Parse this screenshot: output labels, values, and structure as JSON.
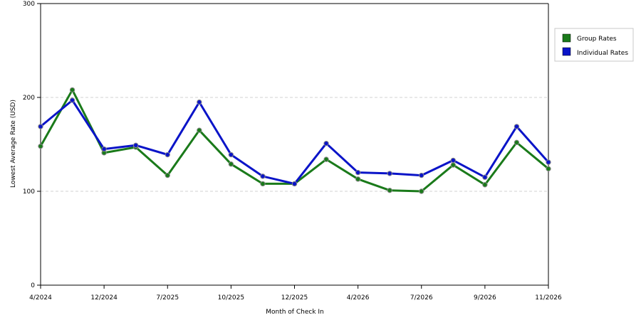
{
  "chart_data": {
    "type": "line",
    "title": "",
    "xlabel": "Month of Check In",
    "ylabel": "Lowest Average Rate (USD)",
    "ylim": [
      0,
      300
    ],
    "y_ticks": [
      0,
      100,
      200,
      300
    ],
    "x_tick_labels": [
      {
        "index": 0,
        "label": "4/2024"
      },
      {
        "index": 2,
        "label": "12/2024"
      },
      {
        "index": 4,
        "label": "7/2025"
      },
      {
        "index": 6,
        "label": "10/2025"
      },
      {
        "index": 8,
        "label": "12/2025"
      },
      {
        "index": 10,
        "label": "4/2026"
      },
      {
        "index": 12,
        "label": "7/2026"
      },
      {
        "index": 14,
        "label": "9/2026"
      },
      {
        "index": 16,
        "label": "11/2026"
      }
    ],
    "grid": true,
    "legend_position": "right",
    "series": [
      {
        "name": "Group Rates",
        "color": "#1a7a1a",
        "values": [
          148,
          208,
          141,
          147,
          117,
          165,
          129,
          108,
          108,
          134,
          113,
          101,
          100,
          128,
          107,
          152,
          124
        ]
      },
      {
        "name": "Individual Rates",
        "color": "#0a14c8",
        "values": [
          169,
          197,
          145,
          149,
          139,
          195,
          139,
          116,
          108,
          151,
          120,
          119,
          117,
          133,
          115,
          169,
          131
        ]
      }
    ]
  }
}
